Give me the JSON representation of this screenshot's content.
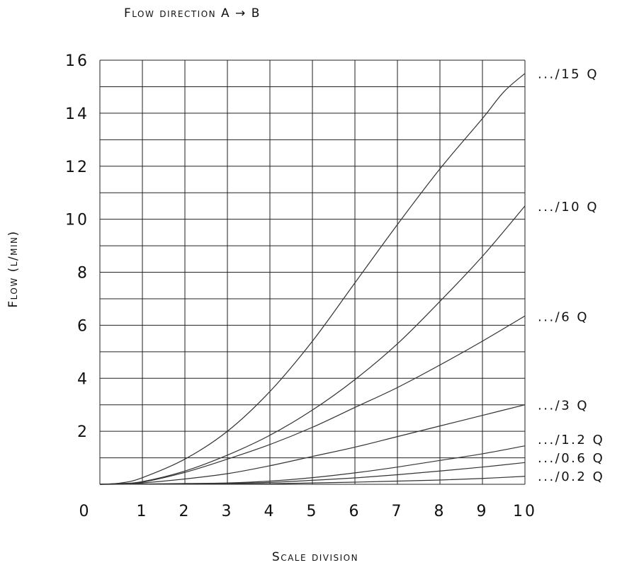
{
  "chart_data": {
    "type": "line",
    "title": "Flow direction A → B",
    "xlabel": "Scale division",
    "ylabel": "Flow (l/min)",
    "x_ticks": [
      "0",
      "1",
      "2",
      "3",
      "4",
      "5",
      "6",
      "7",
      "8",
      "9",
      "10"
    ],
    "y_ticks": [
      "2",
      "4",
      "6",
      "8",
      "10",
      "12",
      "14",
      "16"
    ],
    "xlim": [
      0,
      10
    ],
    "ylim": [
      0,
      16
    ],
    "grid": true,
    "series": [
      {
        "name": ".../15 Q",
        "x": [
          0,
          0.5,
          1,
          2,
          3,
          4,
          5,
          6,
          7,
          8,
          9,
          9.5,
          10
        ],
        "y": [
          0,
          0.05,
          0.25,
          0.95,
          2.0,
          3.5,
          5.4,
          7.6,
          9.8,
          11.9,
          13.8,
          14.8,
          15.5
        ]
      },
      {
        "name": ".../10 Q",
        "x": [
          0,
          0.5,
          1,
          2,
          3,
          4,
          5,
          6,
          7,
          8,
          9,
          10
        ],
        "y": [
          0,
          0.03,
          0.1,
          0.5,
          1.1,
          1.85,
          2.8,
          3.95,
          5.3,
          6.9,
          8.6,
          10.5
        ]
      },
      {
        "name": ".../6 Q",
        "x": [
          0,
          0.5,
          1,
          2,
          3,
          4,
          5,
          6,
          7,
          8,
          9,
          10
        ],
        "y": [
          0,
          0.02,
          0.08,
          0.45,
          0.95,
          1.5,
          2.15,
          2.9,
          3.65,
          4.5,
          5.4,
          6.35
        ]
      },
      {
        "name": ".../3 Q",
        "x": [
          0,
          0.5,
          1,
          2,
          3,
          4,
          5,
          6,
          7,
          8,
          9,
          10
        ],
        "y": [
          0,
          0.01,
          0.05,
          0.2,
          0.4,
          0.7,
          1.05,
          1.4,
          1.8,
          2.2,
          2.6,
          3.0
        ]
      },
      {
        "name": ".../1.2 Q",
        "x": [
          0,
          1,
          2,
          3,
          4,
          5,
          6,
          7,
          8,
          9,
          10
        ],
        "y": [
          0,
          0.01,
          0.03,
          0.05,
          0.12,
          0.25,
          0.43,
          0.65,
          0.9,
          1.15,
          1.45
        ]
      },
      {
        "name": ".../0.6 Q",
        "x": [
          0,
          1,
          2,
          3,
          4,
          5,
          6,
          7,
          8,
          9,
          10
        ],
        "y": [
          0,
          0.005,
          0.01,
          0.03,
          0.07,
          0.15,
          0.24,
          0.36,
          0.5,
          0.65,
          0.82
        ]
      },
      {
        "name": ".../0.2 Q",
        "x": [
          0,
          1,
          2,
          3,
          4,
          5,
          6,
          7,
          8,
          9,
          10
        ],
        "y": [
          0,
          0.003,
          0.006,
          0.01,
          0.02,
          0.05,
          0.08,
          0.12,
          0.16,
          0.22,
          0.3
        ]
      }
    ],
    "line_color": "#333333",
    "grid_color": "#222222"
  }
}
